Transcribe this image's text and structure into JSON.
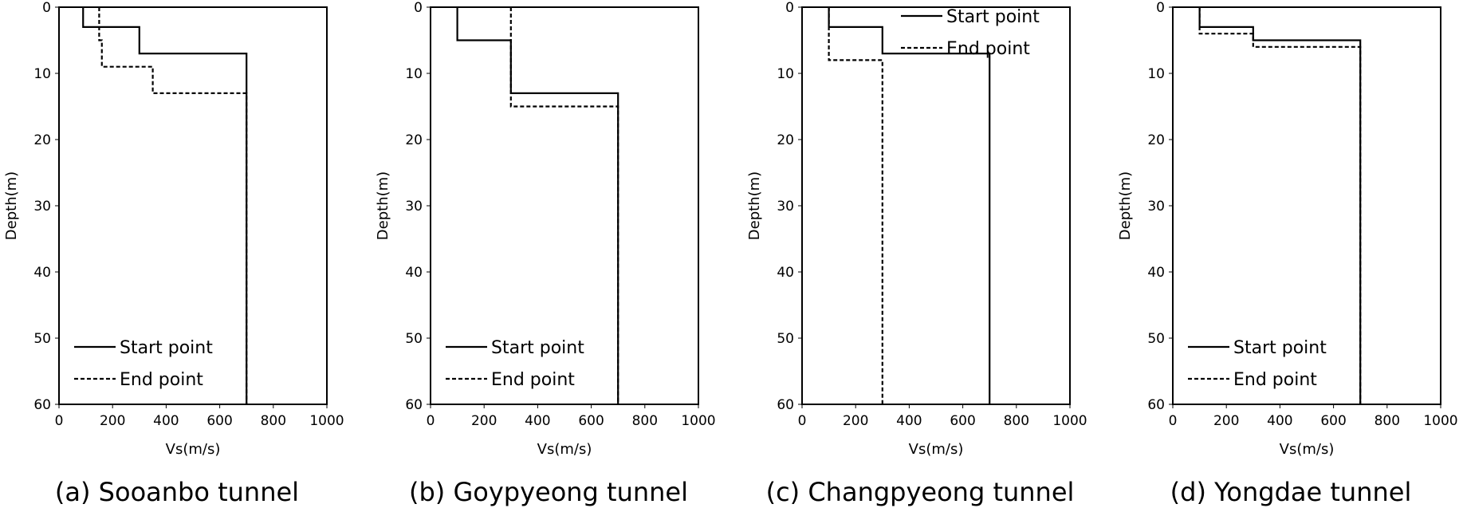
{
  "chart_data": [
    {
      "type": "line",
      "title": "(a) Sooanbo tunnel",
      "x_label": "Vs(m/s)",
      "y_label": "Depth(m)",
      "xlim": [
        0,
        1000
      ],
      "ylim": [
        0,
        60
      ],
      "invert_y": true,
      "xticks": [
        0,
        200,
        400,
        600,
        800,
        1000
      ],
      "yticks": [
        0,
        10,
        20,
        30,
        40,
        50,
        60
      ],
      "legend_loc": "lower left",
      "series": [
        {
          "name": "Start point",
          "color": "#000000",
          "dash": false,
          "x": [
            90,
            90,
            300,
            300,
            700,
            700
          ],
          "y": [
            0,
            3,
            3,
            7,
            7,
            60
          ]
        },
        {
          "name": "End point",
          "color": "#000000",
          "dash": true,
          "x": [
            150,
            150,
            160,
            160,
            350,
            350,
            700,
            700
          ],
          "y": [
            0,
            5,
            5,
            9,
            9,
            13,
            13,
            60
          ]
        }
      ]
    },
    {
      "type": "line",
      "title": "(b) Goypyeong tunnel",
      "x_label": "Vs(m/s)",
      "y_label": "Depth(m)",
      "xlim": [
        0,
        1000
      ],
      "ylim": [
        0,
        60
      ],
      "invert_y": true,
      "xticks": [
        0,
        200,
        400,
        600,
        800,
        1000
      ],
      "yticks": [
        0,
        10,
        20,
        30,
        40,
        50,
        60
      ],
      "legend_loc": "lower left",
      "series": [
        {
          "name": "Start point",
          "color": "#000000",
          "dash": false,
          "x": [
            100,
            100,
            300,
            300,
            700,
            700
          ],
          "y": [
            0,
            5,
            5,
            13,
            13,
            60
          ]
        },
        {
          "name": "End point",
          "color": "#000000",
          "dash": true,
          "x": [
            300,
            300,
            700,
            700
          ],
          "y": [
            0,
            15,
            15,
            60
          ]
        }
      ]
    },
    {
      "type": "line",
      "title": "(c) Changpyeong tunnel",
      "x_label": "Vs(m/s)",
      "y_label": "Depth(m)",
      "xlim": [
        0,
        1000
      ],
      "ylim": [
        0,
        60
      ],
      "invert_y": true,
      "xticks": [
        0,
        200,
        400,
        600,
        800,
        1000
      ],
      "yticks": [
        0,
        10,
        20,
        30,
        40,
        50,
        60
      ],
      "legend_loc": "upper right",
      "series": [
        {
          "name": "Start point",
          "color": "#000000",
          "dash": false,
          "x": [
            100,
            100,
            300,
            300,
            700,
            700
          ],
          "y": [
            0,
            3,
            3,
            7,
            7,
            60
          ]
        },
        {
          "name": "End point",
          "color": "#000000",
          "dash": true,
          "x": [
            100,
            100,
            300,
            300
          ],
          "y": [
            0,
            8,
            8,
            60
          ]
        }
      ]
    },
    {
      "type": "line",
      "title": "(d) Yongdae tunnel",
      "x_label": "Vs(m/s)",
      "y_label": "Depth(m)",
      "xlim": [
        0,
        1000
      ],
      "ylim": [
        0,
        60
      ],
      "invert_y": true,
      "xticks": [
        0,
        200,
        400,
        600,
        800,
        1000
      ],
      "yticks": [
        0,
        10,
        20,
        30,
        40,
        50,
        60
      ],
      "legend_loc": "lower left",
      "series": [
        {
          "name": "Start point",
          "color": "#000000",
          "dash": false,
          "x": [
            100,
            100,
            300,
            300,
            700,
            700
          ],
          "y": [
            0,
            3,
            3,
            5,
            5,
            60
          ]
        },
        {
          "name": "End point",
          "color": "#000000",
          "dash": true,
          "x": [
            100,
            100,
            300,
            300,
            700,
            700
          ],
          "y": [
            0,
            4,
            4,
            6,
            6,
            60
          ]
        }
      ]
    }
  ]
}
